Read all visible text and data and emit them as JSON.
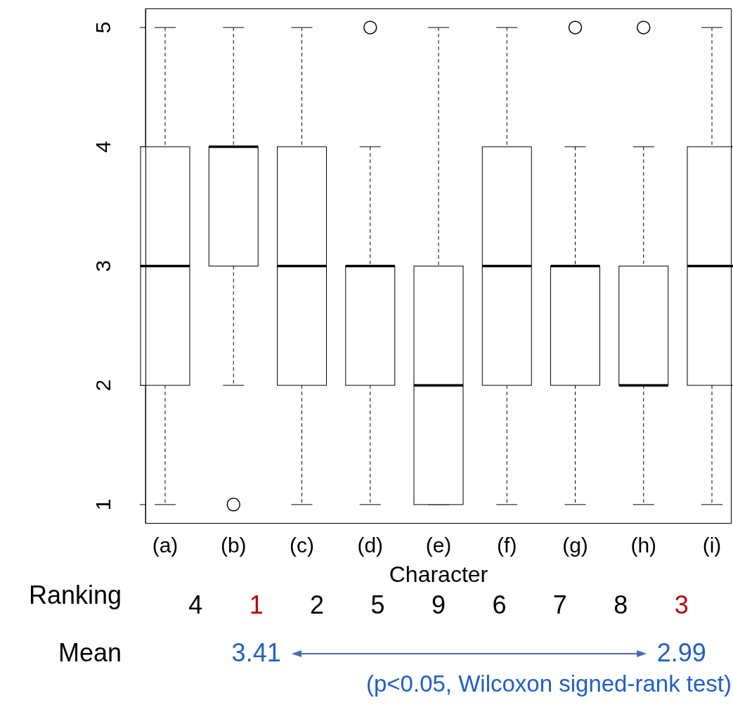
{
  "chart_data": {
    "type": "box",
    "xlabel": "Character",
    "categories": [
      "(a)",
      "(b)",
      "(c)",
      "(d)",
      "(e)",
      "(f)",
      "(g)",
      "(h)",
      "(i)"
    ],
    "boxes": [
      {
        "low": 1,
        "q1": 2,
        "median": 3,
        "q3": 4,
        "high": 5
      },
      {
        "low": 2,
        "q1": 3,
        "median": 4,
        "q3": 4,
        "high": 5,
        "outliers": [
          1
        ]
      },
      {
        "low": 1,
        "q1": 2,
        "median": 3,
        "q3": 4,
        "high": 5
      },
      {
        "low": 1,
        "q1": 2,
        "median": 3,
        "q3": 3,
        "high": 4,
        "outliers": [
          5
        ]
      },
      {
        "low": 1,
        "q1": 1,
        "median": 2,
        "q3": 3,
        "high": 5
      },
      {
        "low": 1,
        "q1": 2,
        "median": 3,
        "q3": 4,
        "high": 5
      },
      {
        "low": 1,
        "q1": 2,
        "median": 3,
        "q3": 3,
        "high": 4,
        "outliers": [
          5
        ]
      },
      {
        "low": 1,
        "q1": 2,
        "median": 2,
        "q3": 3,
        "high": 4,
        "outliers": [
          5
        ]
      },
      {
        "low": 1,
        "q1": 2,
        "median": 3,
        "q3": 4,
        "high": 5
      }
    ],
    "ylim": [
      0.84,
      5.16
    ],
    "yticks": [
      1,
      2,
      3,
      4,
      5
    ],
    "annotations": [
      "Ranking",
      "4",
      "1",
      "2",
      "5",
      "9",
      "6",
      "7",
      "8",
      "3",
      "Mean",
      "3.41",
      "2.99",
      "(p<0.05, Wilcoxon signed-rank test)"
    ]
  }
}
